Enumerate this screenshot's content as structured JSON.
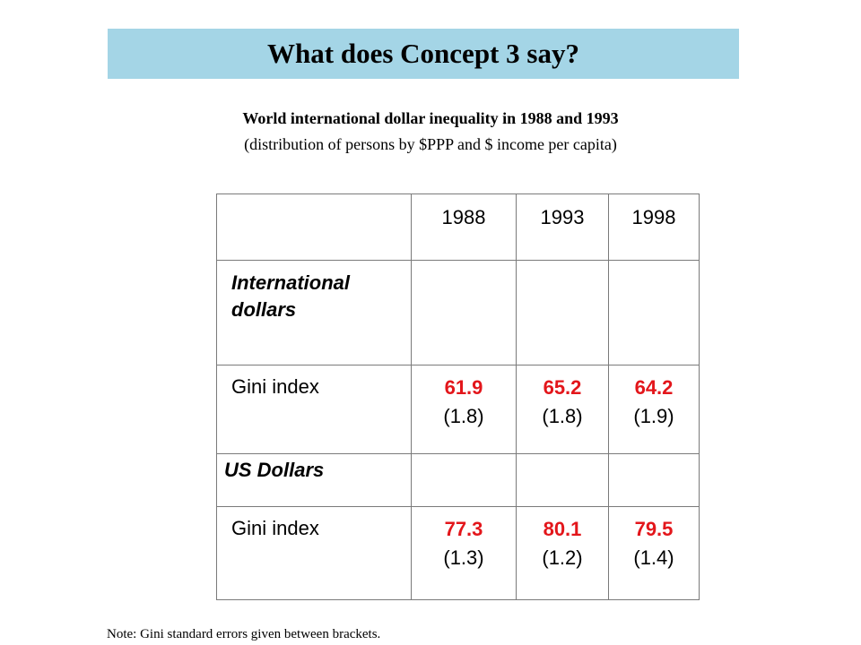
{
  "title": "What does Concept 3 say?",
  "subtitle": {
    "line1": "World international dollar inequality in 1988 and 1993",
    "line2": "(distribution of persons by $PPP and $ income per capita)"
  },
  "table": {
    "years": [
      "1988",
      "1993",
      "1998"
    ],
    "sections": [
      {
        "heading": "International dollars",
        "row_label": "Gini index",
        "gini": [
          "61.9",
          "65.2",
          "64.2"
        ],
        "se": [
          "(1.8)",
          "(1.8)",
          "(1.9)"
        ]
      },
      {
        "heading": "US Dollars",
        "row_label": "Gini index",
        "gini": [
          "77.3",
          "80.1",
          "79.5"
        ],
        "se": [
          "(1.3)",
          "(1.2)",
          "(1.4)"
        ]
      }
    ]
  },
  "note": "Note: Gini standard errors given between brackets.",
  "colors": {
    "title_background": "#a4d5e6",
    "gini_value": "#e3161b"
  }
}
